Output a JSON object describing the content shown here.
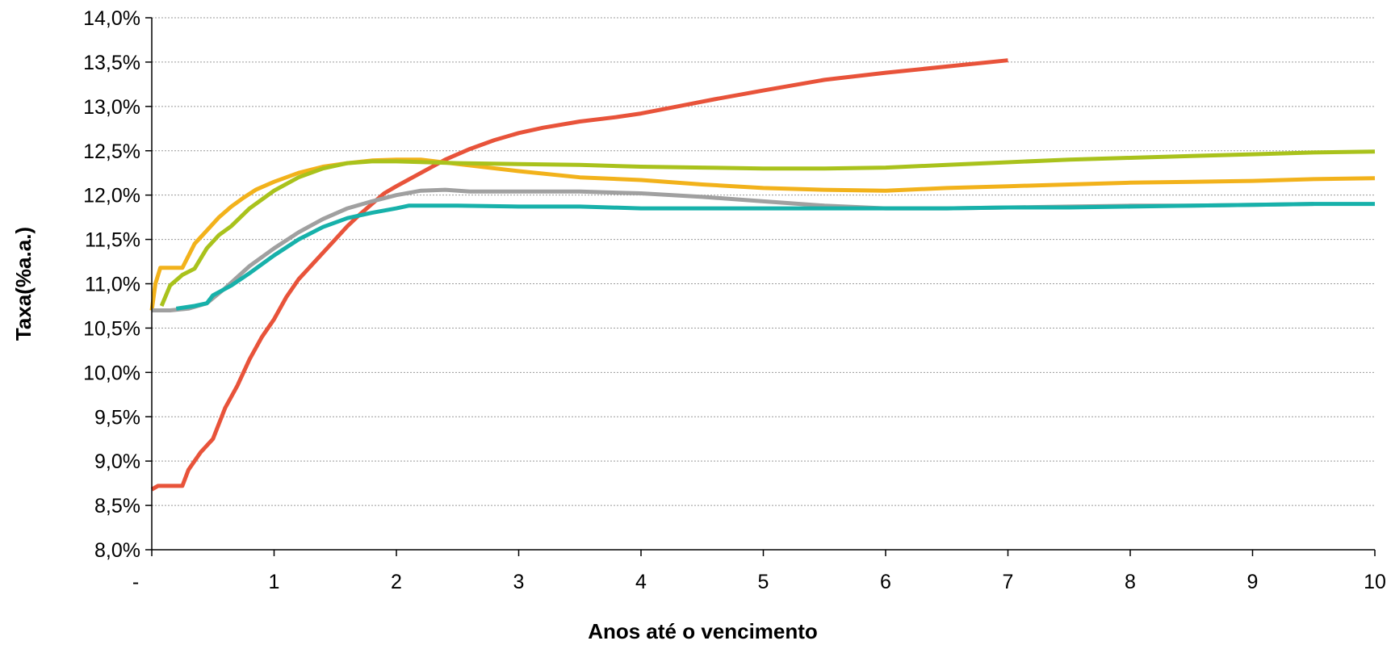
{
  "chart_data": {
    "type": "line",
    "xlabel": "Anos até o vencimento",
    "ylabel": "Taxa(%a.a.)",
    "xlim": [
      0,
      10
    ],
    "ylim": [
      8.0,
      14.0
    ],
    "x_ticks": [
      0,
      1,
      2,
      3,
      4,
      5,
      6,
      7,
      8,
      9,
      10
    ],
    "x_tick_labels": [
      "-",
      "1",
      "2",
      "3",
      "4",
      "5",
      "6",
      "7",
      "8",
      "9",
      "10"
    ],
    "y_ticks": [
      8.0,
      8.5,
      9.0,
      9.5,
      10.0,
      10.5,
      11.0,
      11.5,
      12.0,
      12.5,
      13.0,
      13.5,
      14.0
    ],
    "y_tick_labels": [
      "8,0%",
      "8,5%",
      "9,0%",
      "9,5%",
      "10,0%",
      "10,5%",
      "11,0%",
      "11,5%",
      "12,0%",
      "12,5%",
      "13,0%",
      "13,5%",
      "14,0%"
    ],
    "grid": "horizontal",
    "legend": "none",
    "series": [
      {
        "color": "#e8533a",
        "x": [
          0,
          0.05,
          0.25,
          0.3,
          0.4,
          0.5,
          0.6,
          0.7,
          0.8,
          0.9,
          1.0,
          1.1,
          1.2,
          1.3,
          1.4,
          1.5,
          1.6,
          1.7,
          1.8,
          1.9,
          2.0,
          2.2,
          2.4,
          2.6,
          2.8,
          3.0,
          3.2,
          3.5,
          3.8,
          4.0,
          4.3,
          4.6,
          5.0,
          5.5,
          6.0,
          6.5,
          7.0
        ],
        "values": [
          8.68,
          8.72,
          8.72,
          8.9,
          9.1,
          9.25,
          9.6,
          9.85,
          10.15,
          10.4,
          10.6,
          10.85,
          11.05,
          11.2,
          11.35,
          11.5,
          11.65,
          11.78,
          11.9,
          12.02,
          12.1,
          12.25,
          12.4,
          12.52,
          12.62,
          12.7,
          12.76,
          12.83,
          12.88,
          12.92,
          13.0,
          13.08,
          13.18,
          13.3,
          13.38,
          13.45,
          13.52
        ]
      },
      {
        "color": "#f2b21b",
        "x": [
          0,
          0.03,
          0.07,
          0.25,
          0.35,
          0.45,
          0.55,
          0.65,
          0.75,
          0.85,
          1.0,
          1.2,
          1.4,
          1.6,
          1.8,
          2.0,
          2.2,
          2.5,
          3.0,
          3.5,
          4.0,
          4.5,
          5.0,
          5.5,
          6.0,
          6.5,
          7.0,
          7.5,
          8.0,
          8.5,
          9.0,
          9.5,
          10.0
        ],
        "values": [
          10.7,
          11.0,
          11.18,
          11.18,
          11.45,
          11.6,
          11.75,
          11.87,
          11.97,
          12.06,
          12.15,
          12.25,
          12.32,
          12.36,
          12.39,
          12.4,
          12.4,
          12.35,
          12.27,
          12.2,
          12.17,
          12.12,
          12.08,
          12.06,
          12.05,
          12.08,
          12.1,
          12.12,
          12.14,
          12.15,
          12.16,
          12.18,
          12.19
        ]
      },
      {
        "color": "#a9c21c",
        "x": [
          0.08,
          0.15,
          0.25,
          0.35,
          0.45,
          0.55,
          0.65,
          0.8,
          1.0,
          1.2,
          1.4,
          1.6,
          1.8,
          2.0,
          2.5,
          3.0,
          3.5,
          4.0,
          4.5,
          5.0,
          5.5,
          6.0,
          6.5,
          7.0,
          7.5,
          8.0,
          8.5,
          9.0,
          9.5,
          10.0
        ],
        "values": [
          10.75,
          10.98,
          11.1,
          11.17,
          11.4,
          11.55,
          11.65,
          11.85,
          12.05,
          12.2,
          12.3,
          12.36,
          12.38,
          12.38,
          12.36,
          12.35,
          12.34,
          12.32,
          12.31,
          12.3,
          12.3,
          12.31,
          12.34,
          12.37,
          12.4,
          12.42,
          12.44,
          12.46,
          12.48,
          12.49
        ]
      },
      {
        "color": "#a0a0a0",
        "x": [
          0,
          0.15,
          0.3,
          0.45,
          0.6,
          0.8,
          1.0,
          1.2,
          1.4,
          1.6,
          1.8,
          2.0,
          2.2,
          2.4,
          2.6,
          3.0,
          3.5,
          4.0,
          4.5,
          5.0,
          5.5,
          6.0,
          6.5,
          7.0,
          7.5,
          8.0,
          8.5,
          9.0,
          9.5
        ],
        "values": [
          10.7,
          10.7,
          10.72,
          10.78,
          10.95,
          11.2,
          11.4,
          11.58,
          11.73,
          11.85,
          11.93,
          12.0,
          12.05,
          12.06,
          12.04,
          12.04,
          12.04,
          12.02,
          11.98,
          11.93,
          11.88,
          11.85,
          11.85,
          11.86,
          11.87,
          11.88,
          11.88,
          11.89,
          11.9
        ]
      },
      {
        "color": "#17b1aa",
        "x": [
          0.2,
          0.35,
          0.45,
          0.5,
          0.65,
          0.8,
          1.0,
          1.2,
          1.4,
          1.6,
          1.8,
          2.0,
          2.1,
          2.5,
          3.0,
          3.5,
          4.0,
          4.5,
          5.0,
          5.5,
          6.0,
          6.5,
          7.0,
          7.5,
          8.0,
          8.5,
          9.0,
          9.5,
          10.0
        ],
        "values": [
          10.72,
          10.75,
          10.78,
          10.87,
          10.98,
          11.12,
          11.32,
          11.5,
          11.64,
          11.74,
          11.8,
          11.85,
          11.88,
          11.88,
          11.87,
          11.87,
          11.85,
          11.85,
          11.85,
          11.85,
          11.85,
          11.85,
          11.86,
          11.86,
          11.87,
          11.88,
          11.89,
          11.9,
          11.9
        ]
      }
    ]
  }
}
